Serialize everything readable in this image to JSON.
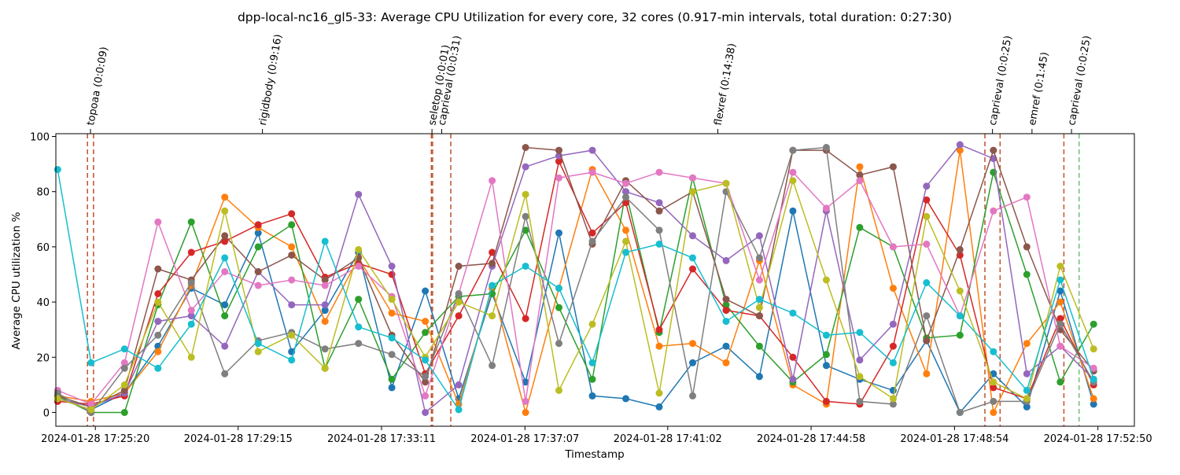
{
  "chart_data": {
    "type": "line",
    "title": "dpp-local-nc16_gl5-33: Average CPU Utilization for every core, 32 cores (0.917-min intervals, total duration: 0:27:30)",
    "xlabel": "Timestamp",
    "ylabel": "Average CPU utilization %",
    "ylim": [
      -5,
      101
    ],
    "y_ticks": [
      0,
      20,
      40,
      60,
      80,
      100
    ],
    "x_ticks": [
      "2024-01-28 17:25:20",
      "2024-01-28 17:29:15",
      "2024-01-28 17:33:11",
      "2024-01-28 17:37:07",
      "2024-01-28 17:41:02",
      "2024-01-28 17:44:58",
      "2024-01-28 17:48:54",
      "2024-01-28 17:52:50"
    ],
    "x_tick_positions_s": [
      0,
      235,
      471,
      707,
      942,
      1178,
      1414,
      1650
    ],
    "x_unit": "seconds after 17:25:20",
    "xlim": [
      -65,
      1710
    ],
    "x_start_time": "2024-01-28 17:24:15",
    "x": [
      -62,
      -7,
      48,
      103,
      158,
      213,
      268,
      323,
      378,
      433,
      488,
      543,
      598,
      653,
      708,
      763,
      818,
      873,
      928,
      983,
      1038,
      1093,
      1148,
      1203,
      1258,
      1313,
      1368,
      1423,
      1478,
      1533,
      1588,
      1643
    ],
    "events": [
      {
        "label": "topoaa (0:0:09)",
        "start_s": -13,
        "end_s": -3
      },
      {
        "label": "rigidbody (0:9:16)",
        "start_s": -3,
        "end_s": 553
      },
      {
        "label": "seletop (0:0:01)",
        "start_s": 553,
        "end_s": 555
      },
      {
        "label": "caprieval (0:0:31)",
        "start_s": 555,
        "end_s": 585
      },
      {
        "label": "flexref (0:14:38)",
        "start_s": 585,
        "end_s": 1464
      },
      {
        "label": "caprieval (0:0:25)",
        "start_s": 1464,
        "end_s": 1489
      },
      {
        "label": "emref (0:1:45)",
        "start_s": 1489,
        "end_s": 1594
      },
      {
        "label": "caprieval (0:0:25)",
        "start_s": 1594,
        "end_s": 1619
      }
    ],
    "final_marker_s": 1619,
    "series": [
      {
        "color": "#1f77b4",
        "values": [
          5,
          1,
          7,
          24,
          45,
          39,
          65,
          22,
          37,
          58,
          9,
          44,
          5,
          43,
          11,
          65,
          6,
          5,
          2,
          18,
          24,
          13,
          73,
          17,
          12,
          8,
          26,
          0,
          14,
          2,
          44,
          3
        ]
      },
      {
        "color": "#ff7f0e",
        "values": [
          6,
          4,
          7,
          22,
          46,
          78,
          67,
          60,
          33,
          56,
          36,
          33,
          3,
          45,
          0,
          45,
          88,
          66,
          24,
          25,
          18,
          55,
          10,
          3,
          89,
          45,
          14,
          95,
          0,
          25,
          40,
          5
        ]
      },
      {
        "color": "#2ca02c",
        "values": [
          6,
          0,
          0,
          39,
          69,
          35,
          60,
          68,
          16,
          41,
          12,
          29,
          42,
          43,
          66,
          38,
          12,
          80,
          29,
          85,
          39,
          24,
          11,
          21,
          67,
          60,
          27,
          28,
          87,
          50,
          11,
          32
        ]
      },
      {
        "color": "#d62728",
        "values": [
          4,
          3,
          6,
          43,
          58,
          62,
          68,
          72,
          49,
          54,
          50,
          14,
          35,
          58,
          34,
          91,
          65,
          76,
          30,
          52,
          37,
          35,
          20,
          4,
          3,
          24,
          77,
          57,
          9,
          5,
          34,
          10
        ]
      },
      {
        "color": "#9467bd",
        "values": [
          5,
          2,
          7,
          33,
          35,
          24,
          51,
          39,
          39,
          79,
          53,
          0,
          10,
          53,
          89,
          93,
          95,
          80,
          76,
          64,
          55,
          64,
          12,
          73,
          19,
          32,
          82,
          97,
          92,
          14,
          24,
          12
        ]
      },
      {
        "color": "#8c564b",
        "values": [
          6,
          2,
          8,
          52,
          48,
          64,
          51,
          57,
          48,
          56,
          28,
          11,
          53,
          54,
          96,
          95,
          61,
          84,
          73,
          80,
          41,
          35,
          95,
          95,
          86,
          89,
          26,
          59,
          95,
          60,
          30,
          15
        ]
      },
      {
        "color": "#e377c2",
        "values": [
          8,
          3,
          18,
          69,
          37,
          51,
          46,
          48,
          46,
          53,
          42,
          6,
          43,
          84,
          4,
          85,
          87,
          83,
          87,
          85,
          83,
          48,
          87,
          74,
          84,
          60,
          61,
          35,
          73,
          78,
          24,
          16
        ]
      },
      {
        "color": "#7f7f7f",
        "values": [
          7,
          0,
          16,
          28,
          47,
          14,
          26,
          29,
          23,
          25,
          21,
          13,
          43,
          17,
          71,
          25,
          62,
          78,
          66,
          6,
          80,
          56,
          95,
          96,
          4,
          3,
          35,
          0,
          4,
          4,
          32,
          11
        ]
      },
      {
        "color": "#bcbd22",
        "values": [
          5,
          1,
          10,
          40,
          20,
          73,
          22,
          28,
          16,
          59,
          41,
          20,
          40,
          35,
          79,
          8,
          32,
          62,
          7,
          80,
          83,
          38,
          84,
          48,
          13,
          5,
          71,
          44,
          11,
          5,
          53,
          23
        ]
      },
      {
        "color": "#17becf",
        "values": [
          88,
          18,
          23,
          16,
          32,
          56,
          25,
          19,
          62,
          31,
          27,
          19,
          1,
          46,
          53,
          45,
          18,
          58,
          61,
          56,
          33,
          41,
          36,
          28,
          29,
          18,
          47,
          35,
          22,
          8,
          48,
          12
        ]
      }
    ]
  }
}
